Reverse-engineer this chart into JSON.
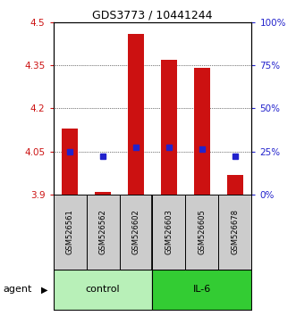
{
  "title": "GDS3773 / 10441244",
  "samples": [
    "GSM526561",
    "GSM526562",
    "GSM526602",
    "GSM526603",
    "GSM526605",
    "GSM526678"
  ],
  "bar_tops": [
    4.13,
    3.91,
    4.46,
    4.37,
    4.34,
    3.97
  ],
  "bar_bottom": 3.9,
  "blue_values": [
    4.05,
    4.035,
    4.065,
    4.065,
    4.06,
    4.035
  ],
  "ylim": [
    3.9,
    4.5
  ],
  "yticks_left": [
    3.9,
    4.05,
    4.2,
    4.35,
    4.5
  ],
  "yticks_right_pct": [
    0,
    25,
    50,
    75,
    100
  ],
  "yticks_right_vals": [
    3.9,
    4.05,
    4.2,
    4.35,
    4.5
  ],
  "groups": [
    {
      "label": "control",
      "color": "#b8f0b8"
    },
    {
      "label": "IL-6",
      "color": "#33cc33"
    }
  ],
  "agent_label": "agent",
  "bar_color": "#cc1111",
  "blue_color": "#2222cc",
  "sample_box_color": "#cccccc"
}
